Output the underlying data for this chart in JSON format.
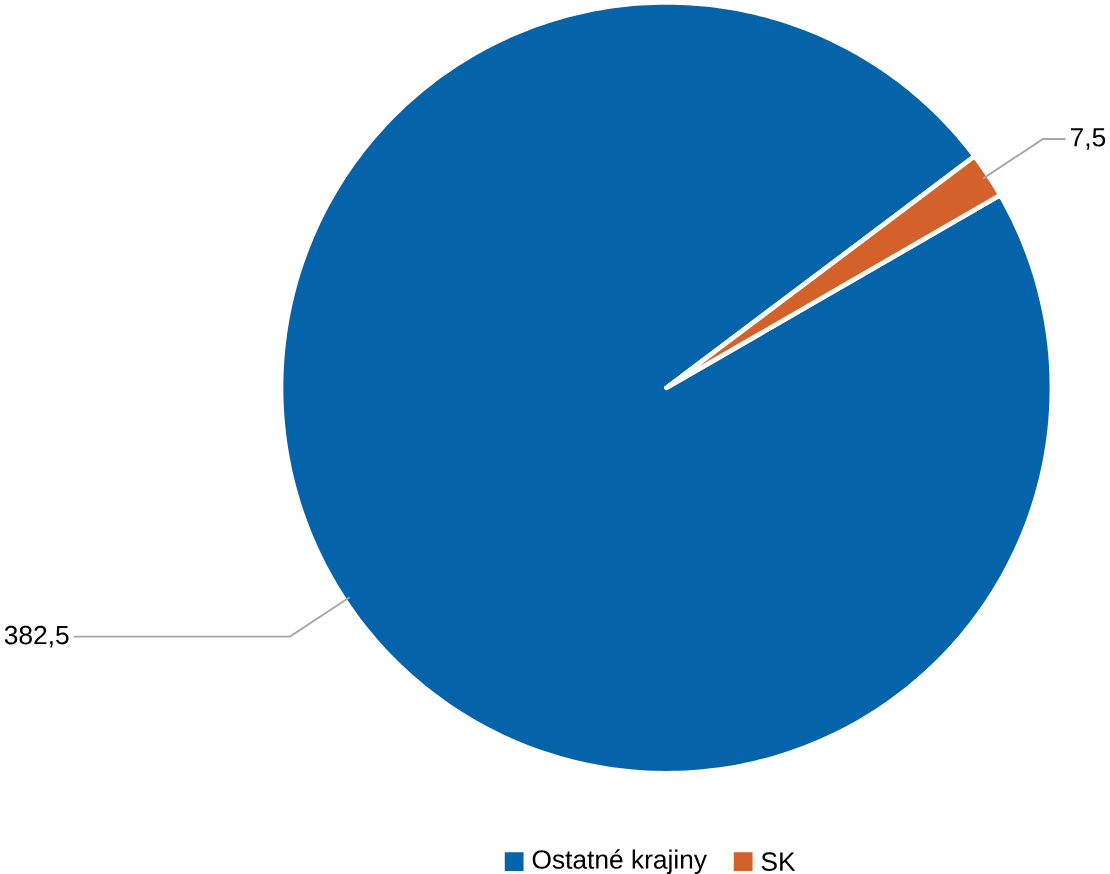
{
  "chart_data": {
    "type": "pie",
    "categories": [
      "Ostatné krajiny",
      "SK"
    ],
    "values": [
      382.5,
      7.5
    ],
    "colors": [
      "#0563aa",
      "#d4612a"
    ],
    "value_labels": [
      "382,5",
      "7,5"
    ],
    "legend": "bottom"
  }
}
